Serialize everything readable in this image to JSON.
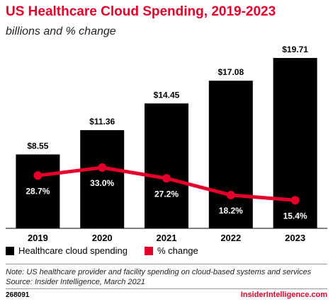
{
  "header": {
    "title": "US Healthcare Cloud Spending, 2019-2023",
    "subtitle": "billions and % change"
  },
  "chart_data": {
    "type": "bar",
    "categories": [
      "2019",
      "2020",
      "2021",
      "2022",
      "2023"
    ],
    "series": [
      {
        "name": "Healthcare cloud spending",
        "kind": "bar",
        "values": [
          8.55,
          11.36,
          14.45,
          17.08,
          19.71
        ],
        "value_labels": [
          "$8.55",
          "$11.36",
          "$14.45",
          "$17.08",
          "$19.71"
        ],
        "color": "#000000"
      },
      {
        "name": "% change",
        "kind": "line",
        "values": [
          28.7,
          33.0,
          27.2,
          18.2,
          15.4
        ],
        "value_labels": [
          "28.7%",
          "33.0%",
          "27.2%",
          "18.2%",
          "15.4%"
        ],
        "color": "#e4002b"
      }
    ],
    "grid": false,
    "legend_position": "bottom-left"
  },
  "footer": {
    "note": "Note: US healthcare provider and facility spending on cloud-based systems and services",
    "source": "Source: Insider Intelligence, March 2021",
    "chart_id": "268091",
    "brand": "InsiderIntelligence.com"
  },
  "colors": {
    "accent": "#e4002b",
    "bar": "#000000"
  }
}
